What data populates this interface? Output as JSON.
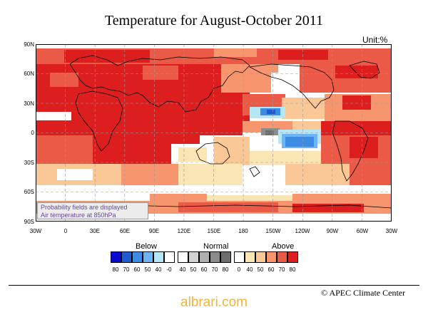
{
  "title": "Temperature for August-October 2011",
  "unit_label": "Unit:%",
  "latitude_labels": [
    "90N",
    "60N",
    "30N",
    "0",
    "30S",
    "60S",
    "90S"
  ],
  "longitude_labels": [
    "30W",
    "0",
    "30E",
    "60E",
    "90E",
    "120E",
    "150E",
    "180",
    "150W",
    "120W",
    "90W",
    "60W",
    "30W"
  ],
  "probability_note": {
    "line1": "Probability fields are displayed",
    "line2": "Air temperature at 850hPa"
  },
  "legend": {
    "below_label": "Below",
    "normal_label": "Normal",
    "above_label": "Above",
    "below": [
      {
        "value": "80",
        "color": "#0a0acd"
      },
      {
        "value": "70",
        "color": "#1e5ad2"
      },
      {
        "value": "60",
        "color": "#3c8ce6"
      },
      {
        "value": "50",
        "color": "#6eb4f5"
      },
      {
        "value": "40",
        "color": "#b4e6f5"
      },
      {
        "value": "-0",
        "color": "#ffffff"
      }
    ],
    "normal": [
      {
        "value": "40",
        "color": "#ffffff"
      },
      {
        "value": "50",
        "color": "#d2d2d2"
      },
      {
        "value": "60",
        "color": "#afafaf"
      },
      {
        "value": "70",
        "color": "#8c8c8c"
      },
      {
        "value": "80",
        "color": "#6e6e6e"
      }
    ],
    "above": [
      {
        "value": "0",
        "color": "#ffffff"
      },
      {
        "value": "40",
        "color": "#fae6b4"
      },
      {
        "value": "50",
        "color": "#fac896"
      },
      {
        "value": "60",
        "color": "#f7966e"
      },
      {
        "value": "70",
        "color": "#eb5a46"
      },
      {
        "value": "80",
        "color": "#dc1e1e"
      }
    ]
  },
  "footer": "© APEC Climate Center",
  "watermark": "albrari.com"
}
